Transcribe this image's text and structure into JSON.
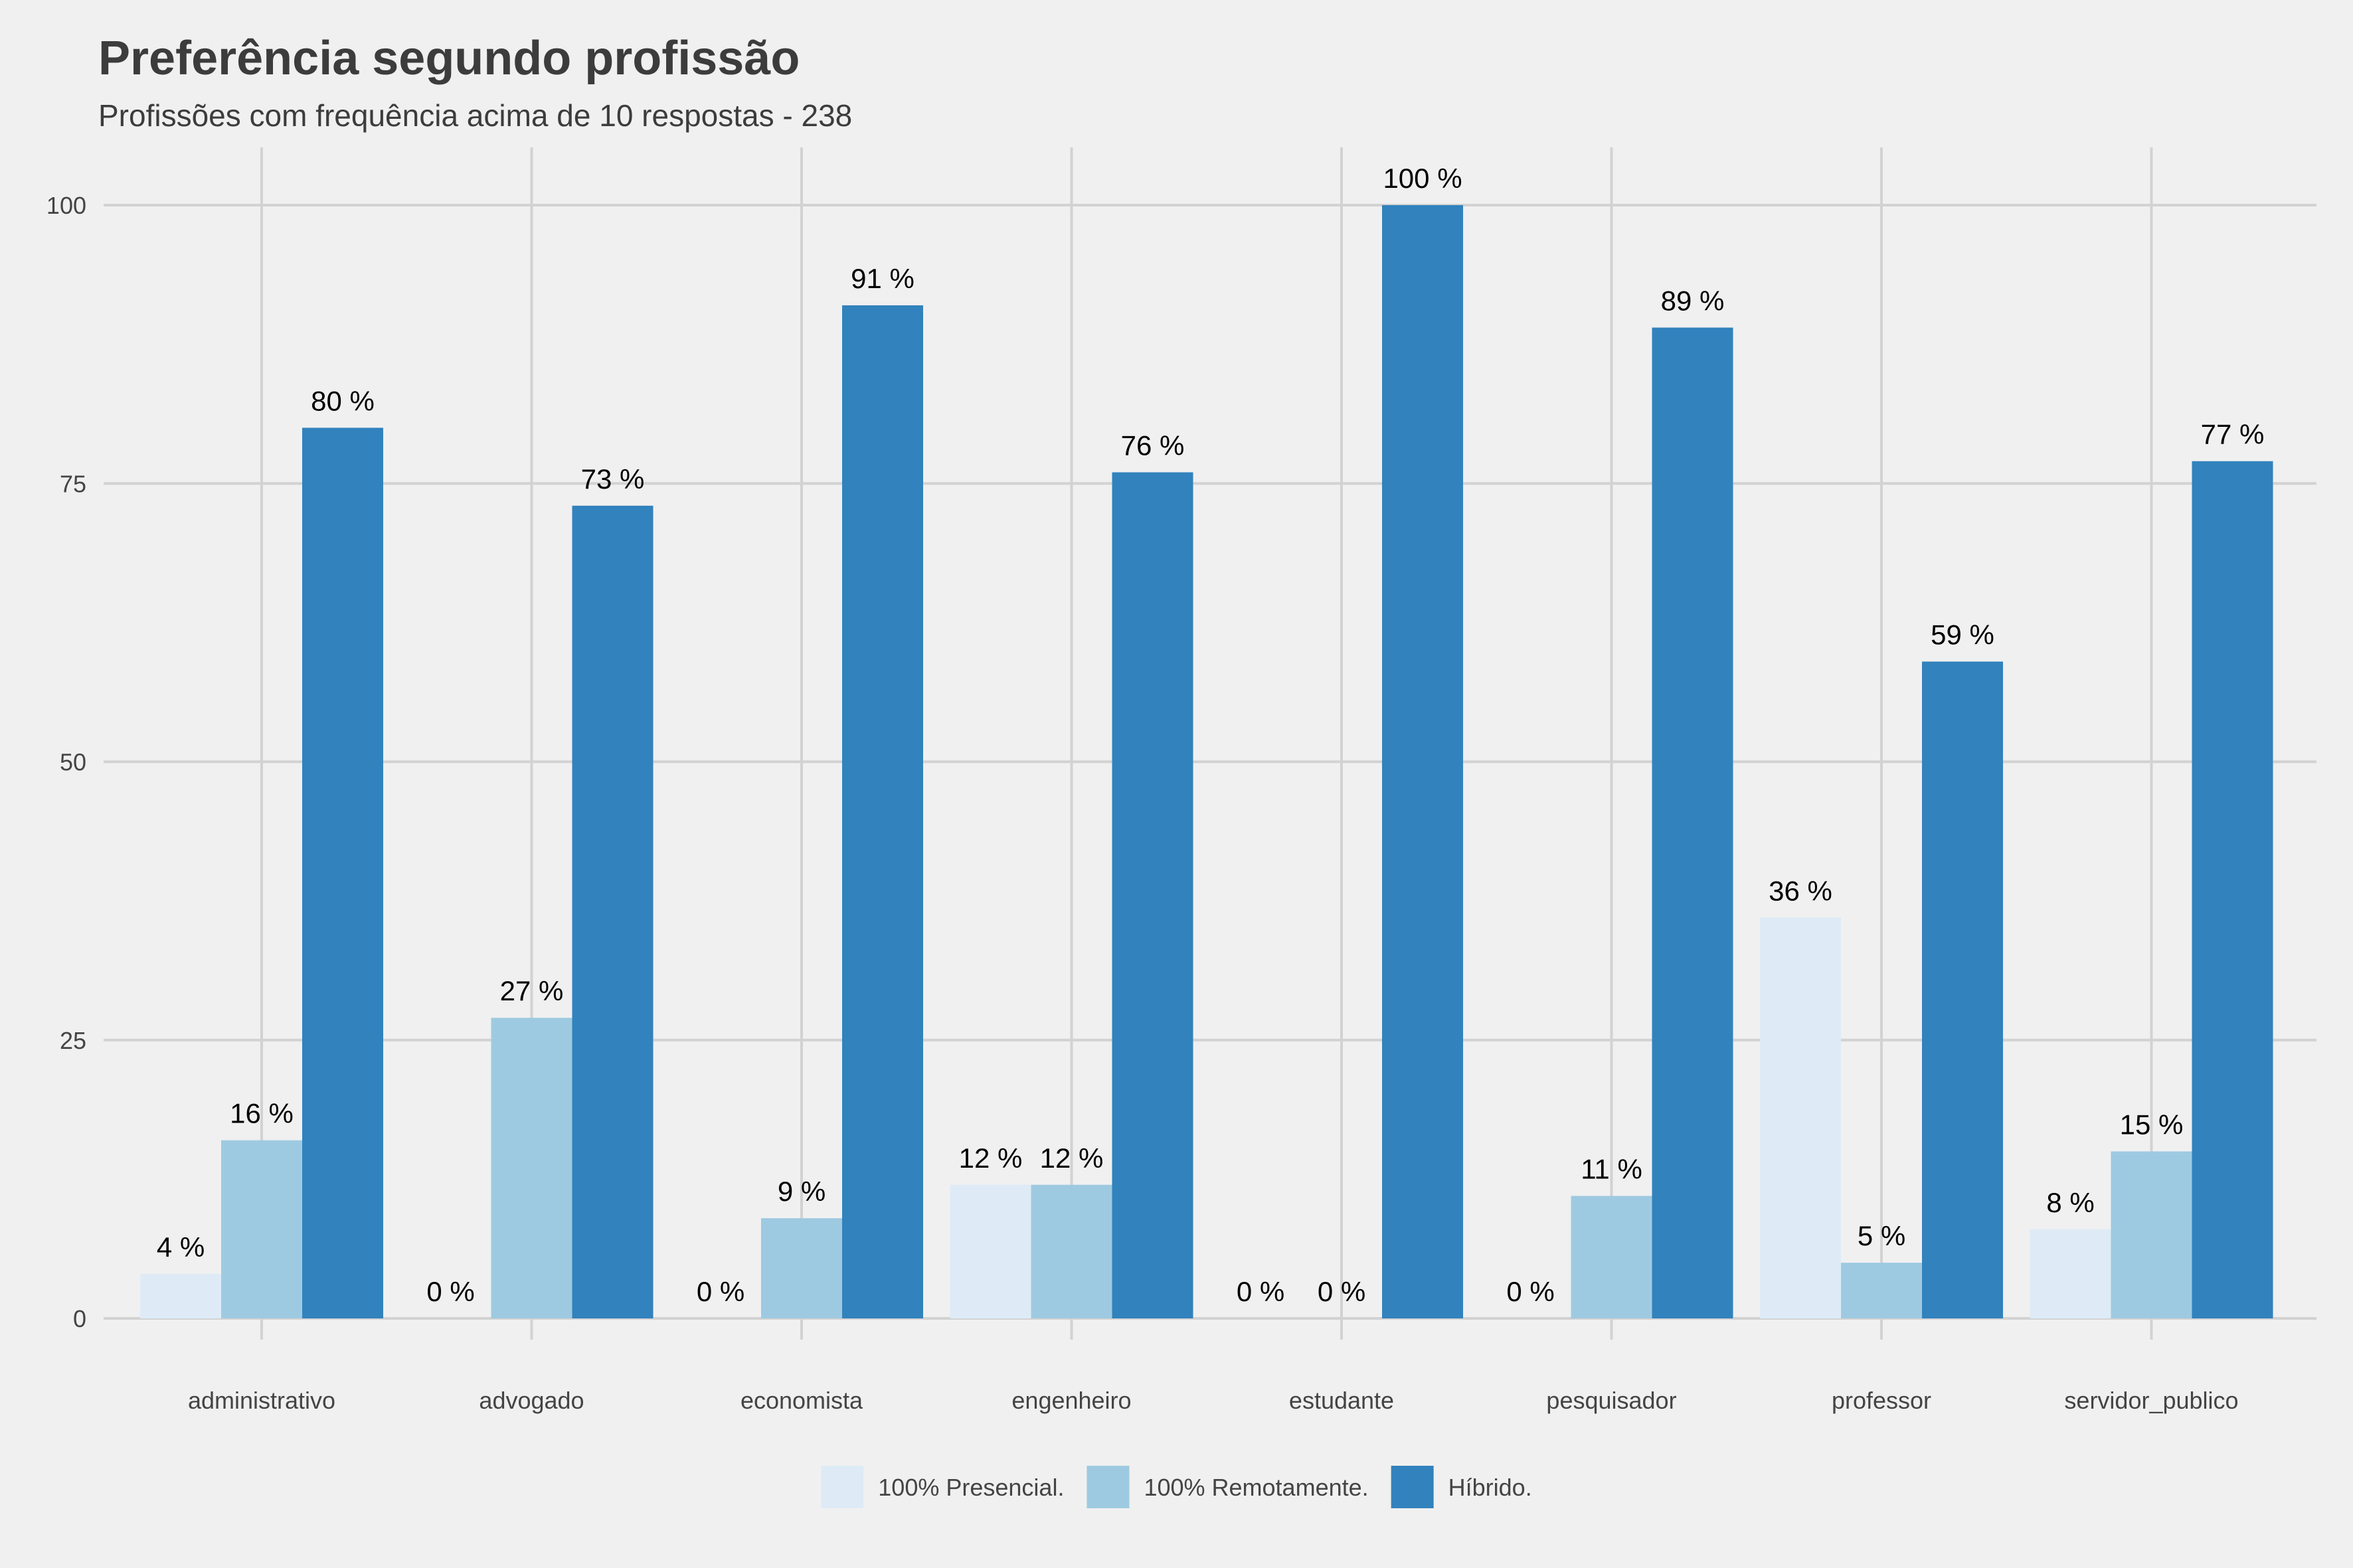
{
  "chart_data": {
    "type": "bar",
    "title": "Preferência segundo profissão",
    "subtitle": "Profissões com frequência acima de 10 respostas - 238",
    "xlabel": "",
    "ylabel": "",
    "ylim": [
      0,
      105
    ],
    "yticks": [
      0,
      25,
      50,
      75,
      100
    ],
    "grid": true,
    "legend_position": "bottom",
    "categories": [
      "administrativo",
      "advogado",
      "economista",
      "engenheiro",
      "estudante",
      "pesquisador",
      "professor",
      "servidor_publico"
    ],
    "series": [
      {
        "name": "100% Presencial.",
        "color": "#deebf7",
        "values": [
          4,
          0,
          0,
          12,
          0,
          0,
          36,
          8
        ],
        "labels": [
          "4 %",
          "0 %",
          "0 %",
          "12 %",
          "0 %",
          "0 %",
          "36 %",
          "8 %"
        ]
      },
      {
        "name": "100% Remotamente.",
        "color": "#9ecae1",
        "values": [
          16,
          27,
          9,
          12,
          0,
          11,
          5,
          15
        ],
        "labels": [
          "16 %",
          "27 %",
          "9 %",
          "12 %",
          "0 %",
          "11 %",
          "5 %",
          "15 %"
        ]
      },
      {
        "name": "Híbrido.",
        "color": "#3182bd",
        "values": [
          80,
          73,
          91,
          76,
          100,
          89,
          59,
          77
        ],
        "labels": [
          "80 %",
          "73 %",
          "91 %",
          "76 %",
          "100 %",
          "89 %",
          "59 %",
          "77 %"
        ]
      }
    ]
  },
  "colors": {
    "background": "#f0f0f0",
    "gridline": "#d2d2d2",
    "text": "#3c3c3c"
  }
}
